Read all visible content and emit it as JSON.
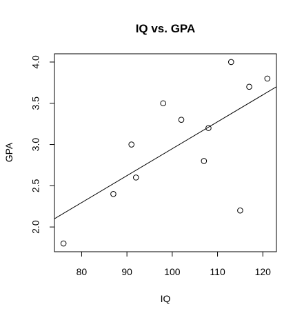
{
  "chart_data": {
    "type": "scatter",
    "title": "IQ vs. GPA",
    "xlabel": "IQ",
    "ylabel": "GPA",
    "xlim": [
      74,
      123
    ],
    "ylim": [
      1.7,
      4.1
    ],
    "x_ticks": [
      80,
      90,
      100,
      110,
      120
    ],
    "y_ticks": [
      2.0,
      2.5,
      3.0,
      3.5,
      4.0
    ],
    "x_tick_labels": [
      "80",
      "90",
      "100",
      "110",
      "120"
    ],
    "y_tick_labels": [
      "2.0",
      "2.5",
      "3.0",
      "3.5",
      "4.0"
    ],
    "grid": false,
    "legend": "none",
    "points": [
      {
        "x": 76,
        "y": 1.8
      },
      {
        "x": 87,
        "y": 2.4
      },
      {
        "x": 91,
        "y": 3.0
      },
      {
        "x": 92,
        "y": 2.6
      },
      {
        "x": 98,
        "y": 3.5
      },
      {
        "x": 102,
        "y": 3.3
      },
      {
        "x": 107,
        "y": 2.8
      },
      {
        "x": 108,
        "y": 3.2
      },
      {
        "x": 113,
        "y": 4.0
      },
      {
        "x": 115,
        "y": 2.2
      },
      {
        "x": 117,
        "y": 3.7
      },
      {
        "x": 121,
        "y": 3.8
      }
    ],
    "trend_line": {
      "type": "linear-fit",
      "x": [
        74,
        123
      ],
      "y": [
        2.1,
        3.7
      ]
    },
    "marker": "open-circle",
    "colors": {
      "foreground": "#000000",
      "background": "#ffffff"
    }
  }
}
